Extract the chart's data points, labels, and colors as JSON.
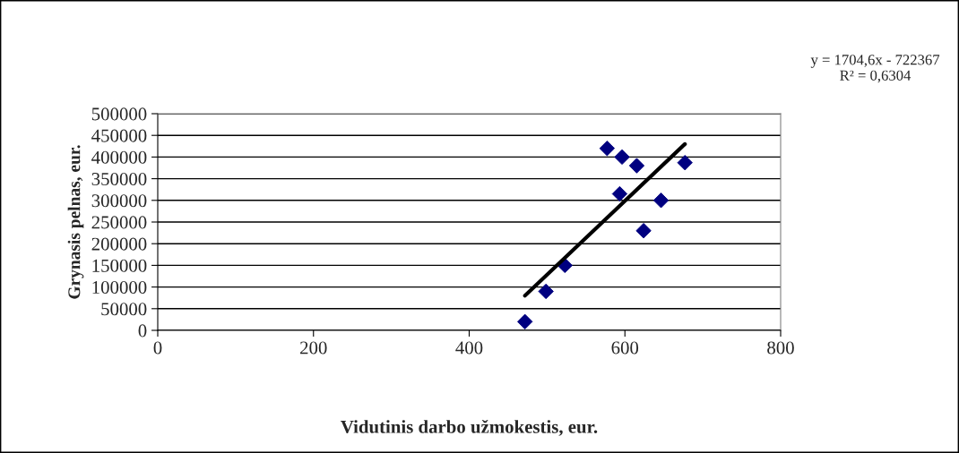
{
  "chart_data": {
    "type": "scatter",
    "xlabel": "Vidutinis darbo užmokestis, eur.",
    "ylabel": "Grynasis pelnas, eur.",
    "series": [
      {
        "color": "#000080",
        "marker": "diamond",
        "x": [
          471.6,
          498.6,
          522.9,
          577.1,
          596.3,
          615.2,
          593.3,
          646.4,
          624.0,
          677.1
        ],
        "values": [
          20000,
          90000,
          150000,
          420000,
          400000,
          380000,
          315000,
          300000,
          230000,
          387000
        ]
      },
      {
        "type": "line",
        "color": "#000000",
        "marker": "none",
        "line_style": "solid",
        "x": [
          471.6,
          677.1
        ],
        "values": [
          80000,
          430000
        ]
      }
    ],
    "xlim": [
      0,
      800
    ],
    "xticks": [
      0,
      200,
      400,
      600,
      800
    ],
    "ylim": [
      0,
      500000
    ],
    "yticks": [
      0,
      50000,
      100000,
      150000,
      200000,
      250000,
      300000,
      350000,
      400000,
      450000,
      500000
    ],
    "grid": "y",
    "legend": false,
    "annotations": [
      "y = 1704,6x - 722367\nR² = 0,6304"
    ]
  }
}
